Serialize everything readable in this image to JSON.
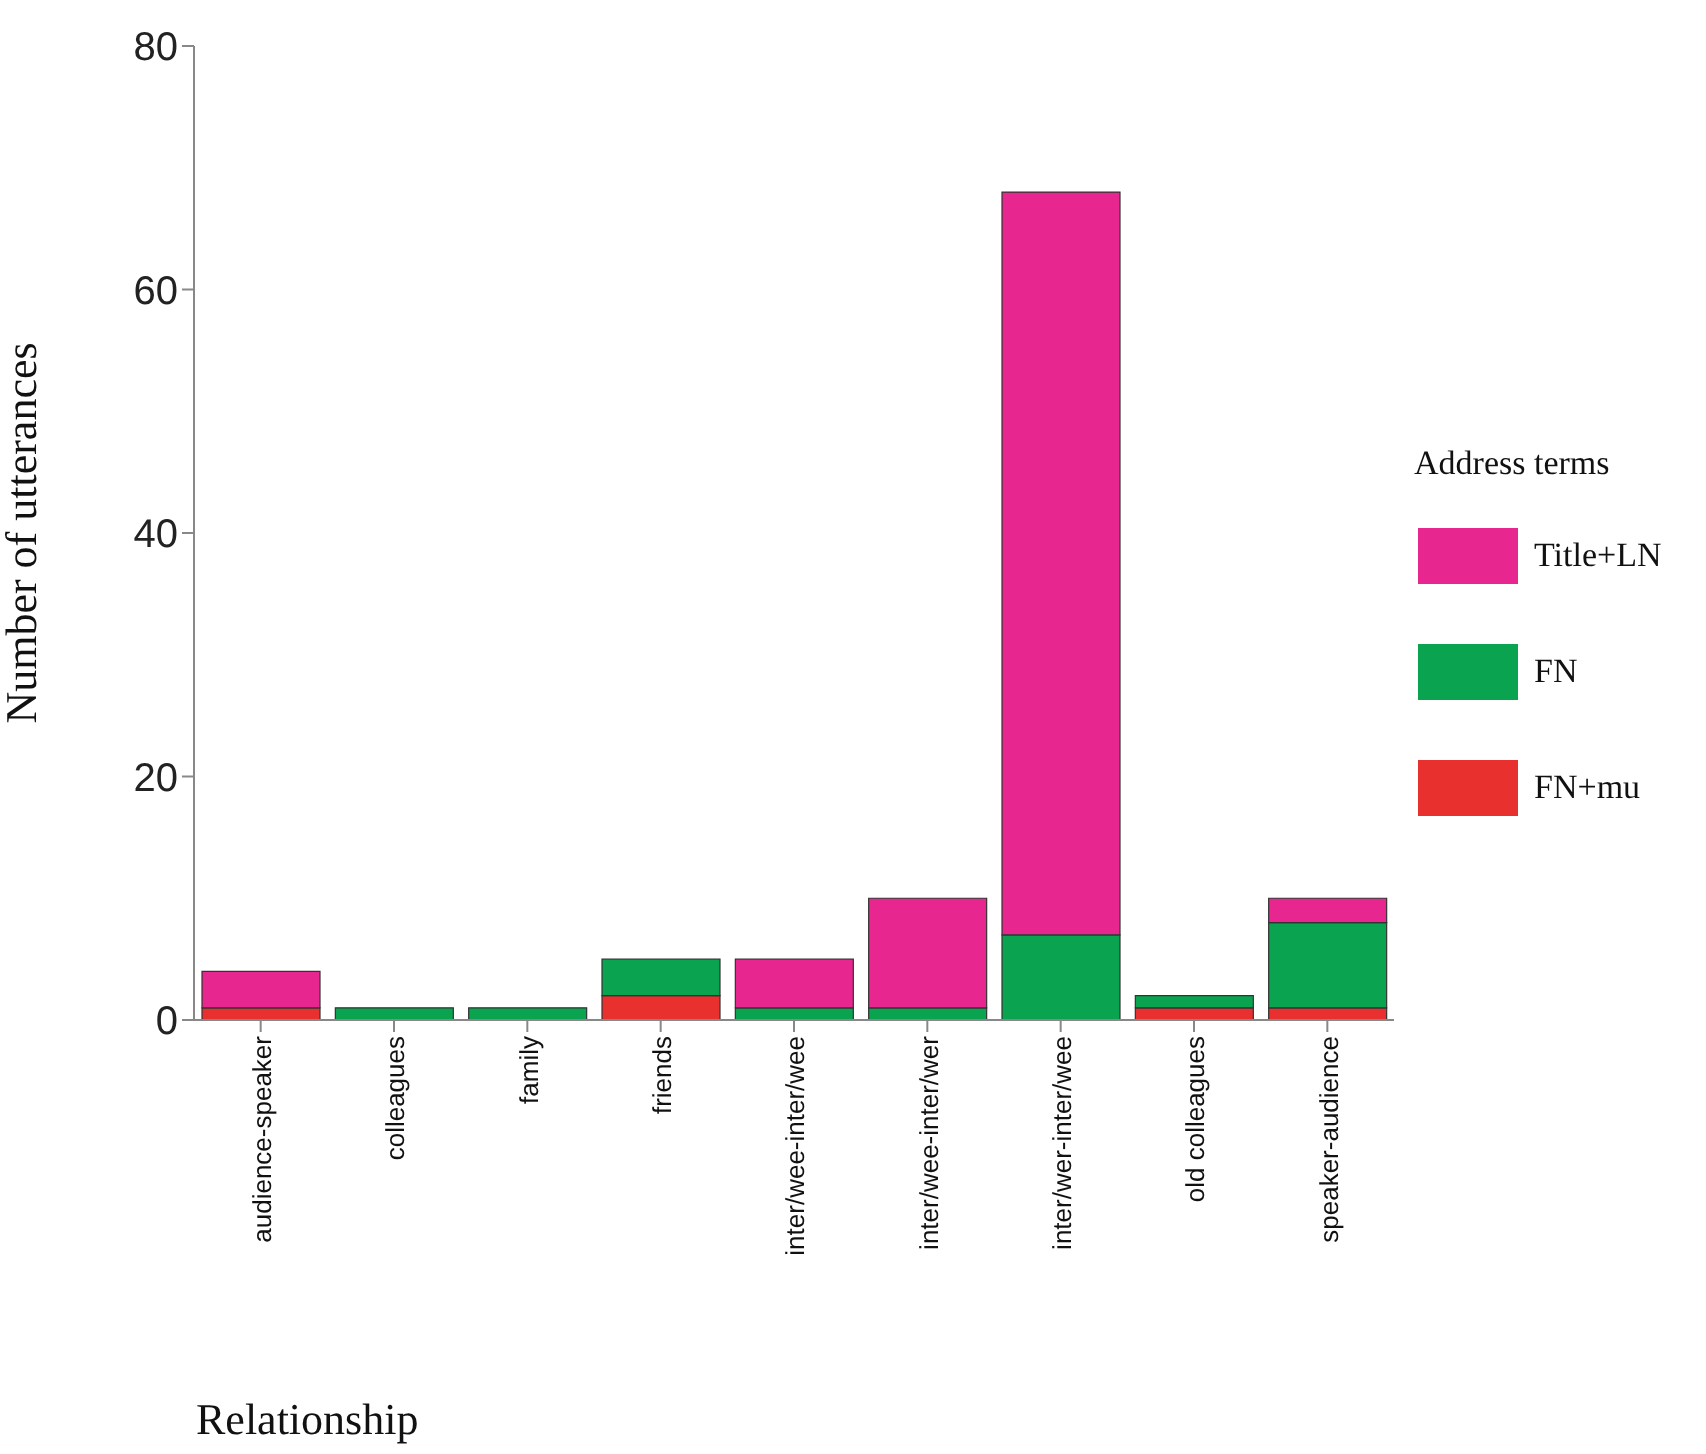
{
  "chart_data": {
    "type": "bar",
    "stacked": true,
    "xlabel": "Relationship",
    "ylabel": "Number of utterances",
    "legend_title": "Address terms",
    "legend": "right",
    "categories": [
      "audience-speaker",
      "colleagues",
      "family",
      "friends",
      "inter/wee-inter/wee",
      "inter/wee-inter/wer",
      "inter/wer-inter/wee",
      "old colleagues",
      "speaker-audience"
    ],
    "series": [
      {
        "name": "FN+mu",
        "color": "#e8312f",
        "values": [
          1,
          0,
          0,
          2,
          0,
          0,
          0,
          1,
          1
        ]
      },
      {
        "name": "FN",
        "color": "#0aa350",
        "values": [
          0,
          1,
          1,
          3,
          1,
          1,
          7,
          1,
          7
        ]
      },
      {
        "name": "Title+LN",
        "color": "#e8268f",
        "values": [
          3,
          0,
          0,
          0,
          4,
          9,
          61,
          0,
          2
        ]
      }
    ],
    "ylim": [
      0,
      80
    ],
    "yticks": [
      0,
      20,
      40,
      60,
      80
    ],
    "grid": false
  }
}
